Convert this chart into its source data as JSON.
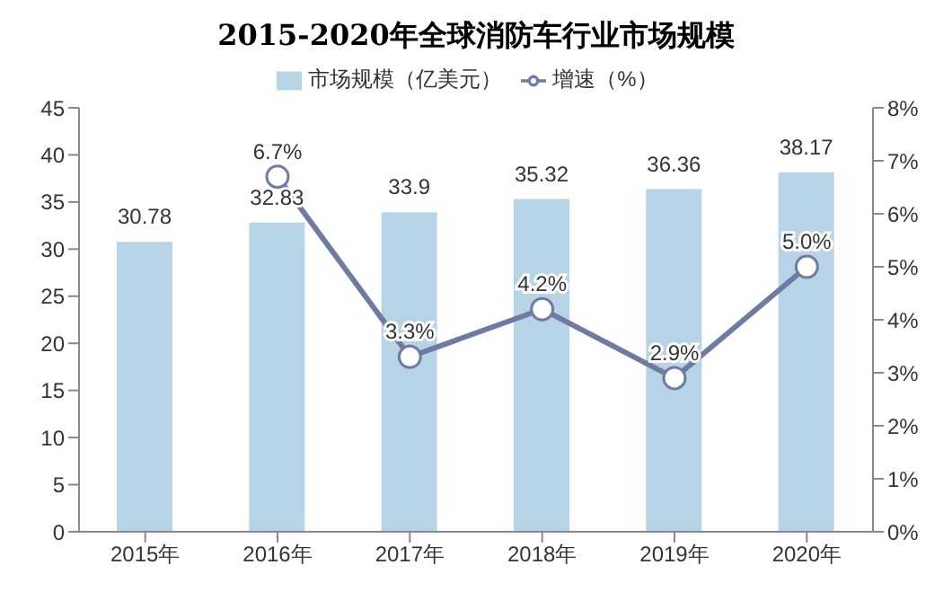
{
  "chart_data": {
    "type": "bar",
    "title": "2015-2020年全球消防车行业市场规模",
    "categories": [
      "2015年",
      "2016年",
      "2017年",
      "2018年",
      "2019年",
      "2020年"
    ],
    "series": [
      {
        "name": "市场规模（亿美元）",
        "color": "#b7d3e6",
        "values": [
          30.78,
          32.83,
          33.9,
          35.32,
          36.36,
          38.17
        ],
        "value_labels": [
          "30.78",
          "32.83",
          "33.9",
          "35.32",
          "36.36",
          "38.17"
        ]
      },
      {
        "name": "增速（%）",
        "type": "line",
        "axis": "y2",
        "color": "#6f7ba3",
        "values": [
          null,
          6.7,
          3.3,
          4.2,
          2.9,
          5.0
        ],
        "value_labels": [
          null,
          "6.7%",
          "3.3%",
          "4.2%",
          "2.9%",
          "5.0%"
        ]
      }
    ],
    "ylim": [
      0,
      45
    ],
    "yticks": [
      0,
      5,
      10,
      15,
      20,
      25,
      30,
      35,
      40,
      45
    ],
    "y2lim": [
      0,
      8
    ],
    "y2ticks": [
      {
        "value": 0,
        "label": "0%"
      },
      {
        "value": 1,
        "label": "1%"
      },
      {
        "value": 2,
        "label": "2%"
      },
      {
        "value": 3,
        "label": "3%"
      },
      {
        "value": 4,
        "label": "4%"
      },
      {
        "value": 5,
        "label": "5%"
      },
      {
        "value": 6,
        "label": "6%"
      },
      {
        "value": 7,
        "label": "7%"
      },
      {
        "value": 8,
        "label": "8%"
      }
    ],
    "legend": "top",
    "marker": "circle"
  }
}
